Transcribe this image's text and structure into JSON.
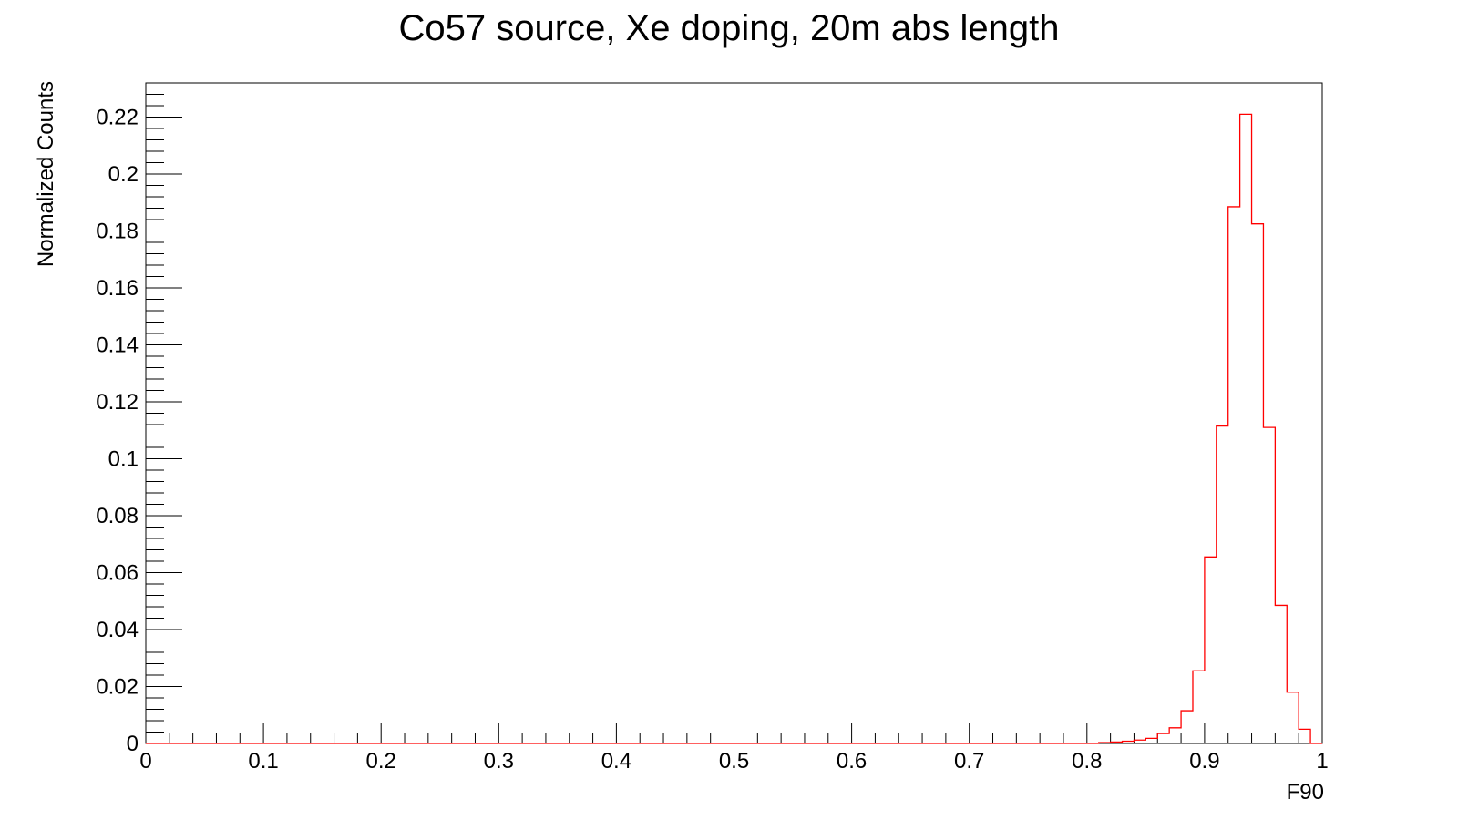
{
  "chart_data": {
    "type": "histogram",
    "title": "Co57 source, Xe doping, 20m abs length",
    "xlabel": "F90",
    "ylabel": "Normalized Counts",
    "xlim": [
      0,
      1
    ],
    "ylim": [
      0,
      0.232
    ],
    "x_ticks": [
      "0",
      "0.1",
      "0.2",
      "0.3",
      "0.4",
      "0.5",
      "0.6",
      "0.7",
      "0.8",
      "0.9",
      "1"
    ],
    "y_ticks": [
      "0",
      "0.02",
      "0.04",
      "0.06",
      "0.08",
      "0.1",
      "0.12",
      "0.14",
      "0.16",
      "0.18",
      "0.2",
      "0.22"
    ],
    "grid": false,
    "legend": "none",
    "series": [
      {
        "color": "#ff0000",
        "bin_edges": [
          0.81,
          0.82,
          0.83,
          0.84,
          0.85,
          0.86,
          0.87,
          0.88,
          0.89,
          0.9,
          0.91,
          0.92,
          0.93,
          0.94,
          0.95,
          0.96,
          0.97,
          0.98,
          0.99
        ],
        "values": [
          0.0003,
          0.0005,
          0.0008,
          0.0012,
          0.0018,
          0.0035,
          0.0055,
          0.0115,
          0.0255,
          0.0655,
          0.1115,
          0.1885,
          0.221,
          0.1825,
          0.111,
          0.0485,
          0.018,
          0.005
        ]
      }
    ]
  }
}
